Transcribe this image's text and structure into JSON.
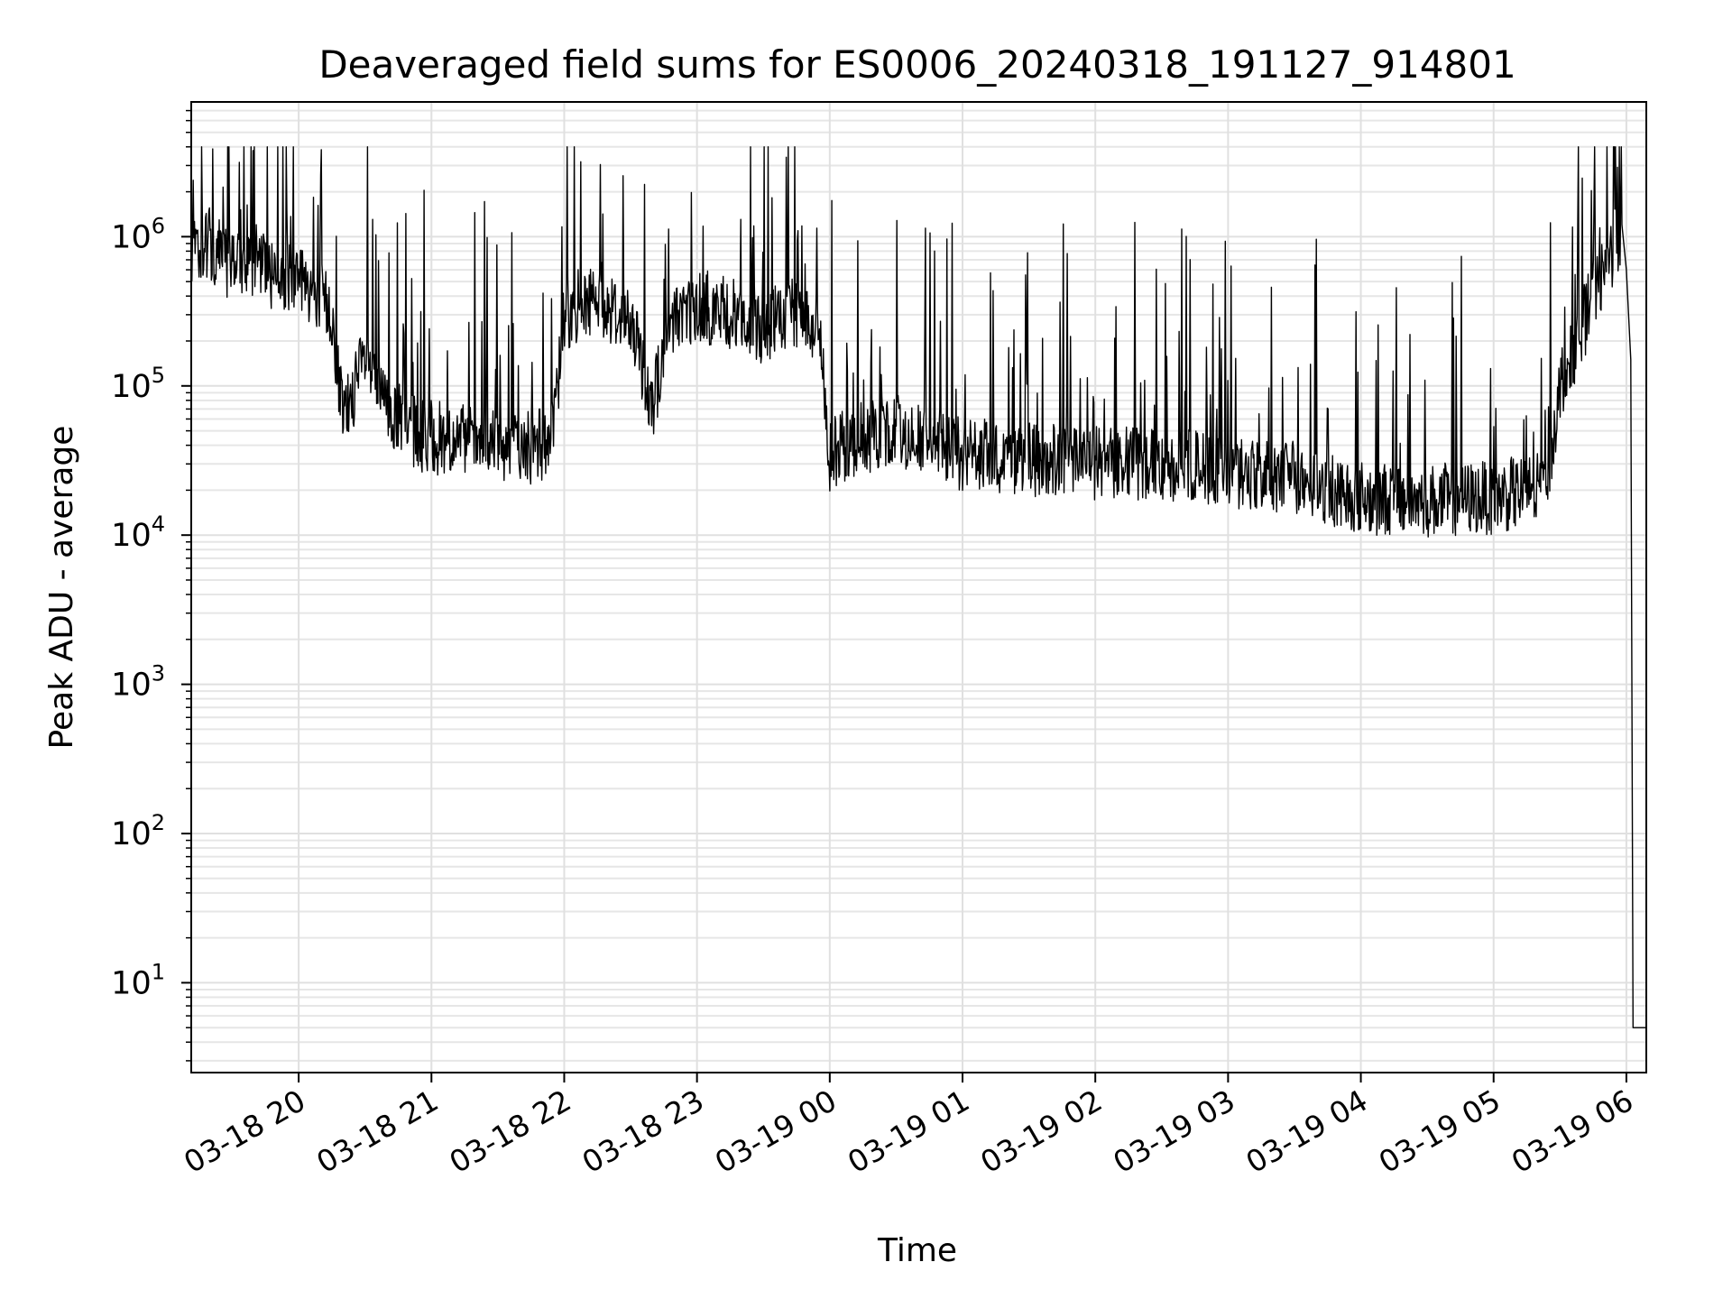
{
  "chart_data": {
    "type": "line",
    "title": "Deaveraged field sums for ES0006_20240318_191127_914801",
    "xlabel": "Time",
    "ylabel": "Peak ADU - average",
    "yscale": "log",
    "ylim": [
      2.5,
      8000000
    ],
    "xlim": [
      "2024-03-18 19:11:27",
      "2024-03-19 06:09:00"
    ],
    "grid": true,
    "x_ticks": [
      {
        "t": "2024-03-18 20:00",
        "label": "03-18 20"
      },
      {
        "t": "2024-03-18 21:00",
        "label": "03-18 21"
      },
      {
        "t": "2024-03-18 22:00",
        "label": "03-18 22"
      },
      {
        "t": "2024-03-18 23:00",
        "label": "03-18 23"
      },
      {
        "t": "2024-03-19 00:00",
        "label": "03-19 00"
      },
      {
        "t": "2024-03-19 01:00",
        "label": "03-19 01"
      },
      {
        "t": "2024-03-19 02:00",
        "label": "03-19 02"
      },
      {
        "t": "2024-03-19 03:00",
        "label": "03-19 03"
      },
      {
        "t": "2024-03-19 04:00",
        "label": "03-19 04"
      },
      {
        "t": "2024-03-19 05:00",
        "label": "03-19 05"
      },
      {
        "t": "2024-03-19 06:00",
        "label": "03-19 06"
      }
    ],
    "y_ticks": [
      {
        "value": 10,
        "base": "10",
        "exp": "1"
      },
      {
        "value": 100,
        "base": "10",
        "exp": "2"
      },
      {
        "value": 1000,
        "base": "10",
        "exp": "3"
      },
      {
        "value": 10000,
        "base": "10",
        "exp": "4"
      },
      {
        "value": 100000,
        "base": "10",
        "exp": "5"
      },
      {
        "value": 1000000,
        "base": "10",
        "exp": "6"
      }
    ],
    "series": [
      {
        "color": "#000000",
        "points": [
          [
            "2024-03-18 19:11:27",
            800000
          ],
          [
            "2024-03-18 19:20",
            900000
          ],
          [
            "2024-03-18 19:30",
            600000
          ],
          [
            "2024-03-18 19:40",
            700000
          ],
          [
            "2024-03-18 19:50",
            500000
          ],
          [
            "2024-03-18 20:00",
            550000
          ],
          [
            "2024-03-18 20:10",
            400000
          ],
          [
            "2024-03-18 20:15",
            300000
          ],
          [
            "2024-03-18 20:20",
            60000
          ],
          [
            "2024-03-18 20:30",
            150000
          ],
          [
            "2024-03-18 20:40",
            70000
          ],
          [
            "2024-03-18 20:50",
            50000
          ],
          [
            "2024-03-18 21:00",
            45000
          ],
          [
            "2024-03-18 21:15",
            42000
          ],
          [
            "2024-03-18 21:30",
            40000
          ],
          [
            "2024-03-18 21:45",
            38000
          ],
          [
            "2024-03-18 21:55",
            45000
          ],
          [
            "2024-03-18 22:00",
            300000
          ],
          [
            "2024-03-18 22:15",
            400000
          ],
          [
            "2024-03-18 22:30",
            250000
          ],
          [
            "2024-03-18 22:40",
            80000
          ],
          [
            "2024-03-18 22:50",
            300000
          ],
          [
            "2024-03-18 23:00",
            350000
          ],
          [
            "2024-03-18 23:15",
            300000
          ],
          [
            "2024-03-18 23:30",
            250000
          ],
          [
            "2024-03-18 23:45",
            300000
          ],
          [
            "2024-03-18 23:55",
            250000
          ],
          [
            "2024-03-19 00:00",
            35000
          ],
          [
            "2024-03-19 00:15",
            45000
          ],
          [
            "2024-03-19 00:30",
            50000
          ],
          [
            "2024-03-19 00:45",
            42000
          ],
          [
            "2024-03-19 01:00",
            35000
          ],
          [
            "2024-03-19 01:30",
            32000
          ],
          [
            "2024-03-19 02:00",
            30000
          ],
          [
            "2024-03-19 02:30",
            30000
          ],
          [
            "2024-03-19 03:00",
            27000
          ],
          [
            "2024-03-19 03:30",
            24000
          ],
          [
            "2024-03-19 04:00",
            18000
          ],
          [
            "2024-03-19 04:30",
            17000
          ],
          [
            "2024-03-19 05:00",
            18000
          ],
          [
            "2024-03-19 05:20",
            20000
          ],
          [
            "2024-03-19 05:25",
            30000
          ],
          [
            "2024-03-19 05:30",
            100000
          ],
          [
            "2024-03-19 05:40",
            250000
          ],
          [
            "2024-03-19 05:50",
            600000
          ],
          [
            "2024-03-19 05:57",
            1100000
          ],
          [
            "2024-03-19 06:00",
            600000
          ],
          [
            "2024-03-19 06:02",
            150000
          ],
          [
            "2024-03-19 06:03",
            5
          ],
          [
            "2024-03-19 06:09",
            5
          ]
        ]
      }
    ]
  }
}
